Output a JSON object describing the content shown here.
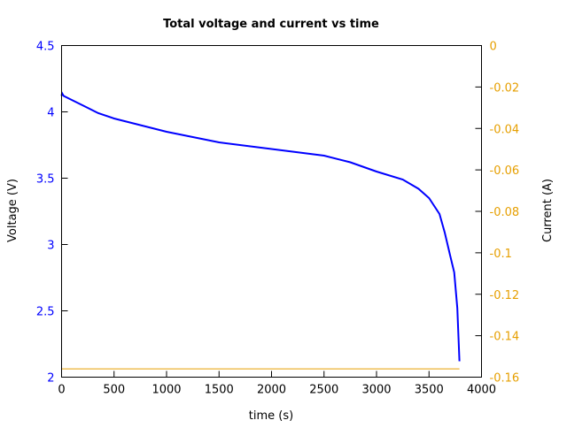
{
  "chart_data": {
    "type": "line",
    "title": "Total voltage and current vs time",
    "xlabel": "time (s)",
    "ylabel": "Voltage (V)",
    "y2label": "Current (A)",
    "xlim": [
      0,
      4000
    ],
    "ylim": [
      2,
      4.5
    ],
    "y2lim": [
      -0.16,
      0
    ],
    "xticks": [
      "0",
      "500",
      "1000",
      "1500",
      "2000",
      "2500",
      "3000",
      "3500",
      "4000"
    ],
    "yticks": [
      "2",
      "2.5",
      "3",
      "3.5",
      "4",
      "4.5"
    ],
    "y2ticks": [
      "-0.16",
      "-0.14",
      "-0.12",
      "-0.1",
      "-0.08",
      "-0.06",
      "-0.04",
      "-0.02",
      "0"
    ],
    "grid": false,
    "colors": {
      "voltage": "#0000ff",
      "current": "#e69f00",
      "left_axis": "#0000ff",
      "right_axis": "#e69f00"
    },
    "series": [
      {
        "axis": "left",
        "x": [
          0,
          5,
          20,
          250,
          350,
          500,
          1000,
          1500,
          2000,
          2500,
          2750,
          3000,
          3250,
          3400,
          3500,
          3600,
          3650,
          3700,
          3740,
          3770,
          3790
        ],
        "y": [
          4.12,
          4.14,
          4.12,
          4.03,
          3.99,
          3.95,
          3.85,
          3.77,
          3.72,
          3.67,
          3.62,
          3.55,
          3.49,
          3.42,
          3.35,
          3.23,
          3.09,
          2.92,
          2.79,
          2.52,
          2.12
        ]
      },
      {
        "axis": "right",
        "x": [
          0,
          3790
        ],
        "y": [
          -0.156,
          -0.156
        ]
      }
    ]
  }
}
